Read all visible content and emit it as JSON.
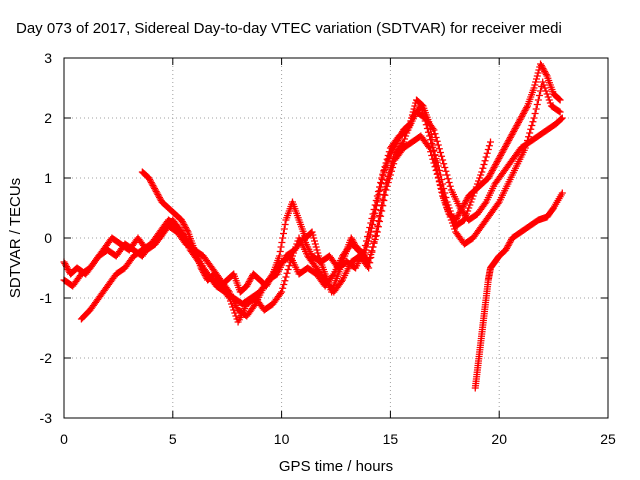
{
  "chart_data": {
    "type": "scatter",
    "title": "Day 073 of 2017, Sidereal Day-to-day VTEC variation (SDTVAR) for receiver medi",
    "xlabel": "GPS time / hours",
    "ylabel": "SDTVAR / TECUs",
    "xlim": [
      0,
      25
    ],
    "ylim": [
      -3,
      3
    ],
    "xticks": [
      0,
      5,
      10,
      15,
      20,
      25
    ],
    "yticks": [
      -3,
      -2,
      -1,
      0,
      1,
      2,
      3
    ],
    "grid": true,
    "marker": "+",
    "color": "#ff0000",
    "series": [
      {
        "x": [
          0.0,
          0.3,
          0.6,
          1.0,
          1.4,
          1.8,
          2.2,
          2.6,
          3.0,
          3.4,
          3.8,
          4.2,
          4.6,
          5.0,
          5.4,
          5.8,
          6.2,
          6.6,
          7.0,
          7.4,
          7.8,
          8.2,
          8.6,
          9.0,
          9.4,
          9.8,
          10.2,
          10.6,
          11.0,
          11.4,
          11.8,
          12.2,
          12.6,
          13.0,
          13.4,
          13.8,
          14.2,
          14.6,
          15.0,
          15.4,
          15.8,
          16.2,
          16.6,
          17.0,
          17.4,
          17.8,
          18.2,
          18.6,
          19.0,
          19.4,
          19.8,
          20.2,
          20.6,
          21.0,
          21.4,
          21.8,
          22.2,
          22.6,
          22.9
        ],
        "y": [
          -0.4,
          -0.6,
          -0.5,
          -0.6,
          -0.4,
          -0.2,
          0.0,
          -0.1,
          -0.2,
          0.0,
          -0.2,
          -0.1,
          0.1,
          0.3,
          0.1,
          -0.2,
          -0.4,
          -0.6,
          -0.8,
          -0.9,
          -1.0,
          -1.1,
          -1.0,
          -0.9,
          -0.7,
          -0.6,
          -0.3,
          -0.2,
          0.0,
          -0.3,
          -0.4,
          -0.3,
          -0.5,
          -0.4,
          -0.5,
          -0.2,
          0.4,
          1.0,
          1.5,
          1.7,
          1.8,
          2.1,
          2.0,
          1.8,
          1.3,
          0.8,
          0.5,
          0.3,
          0.4,
          0.6,
          0.9,
          1.1,
          1.3,
          1.5,
          1.6,
          1.7,
          1.8,
          1.9,
          2.0
        ]
      },
      {
        "x": [
          0.0,
          0.4,
          0.8,
          1.2,
          1.6,
          2.0,
          2.4,
          2.8,
          3.2,
          3.6,
          4.0,
          4.4,
          4.8,
          5.2,
          5.6,
          6.0,
          6.4,
          6.8,
          7.2,
          7.6,
          8.0,
          8.4,
          8.8,
          9.2,
          9.6,
          10.0,
          10.4,
          10.8,
          11.2,
          11.6,
          12.0,
          12.4,
          12.8,
          13.2,
          13.6,
          14.0,
          14.4,
          14.8,
          15.2,
          15.6,
          16.0,
          16.4,
          16.8,
          17.2,
          17.6,
          18.0,
          18.4,
          18.8,
          19.2,
          19.6,
          20.0,
          20.4,
          20.8,
          21.2,
          21.6,
          22.0,
          22.4,
          22.8
        ],
        "y": [
          -0.7,
          -0.8,
          -0.6,
          -0.5,
          -0.3,
          -0.2,
          -0.3,
          -0.1,
          -0.2,
          -0.3,
          -0.1,
          0.0,
          0.2,
          0.1,
          -0.1,
          -0.2,
          -0.3,
          -0.5,
          -0.7,
          -0.9,
          -1.2,
          -1.3,
          -1.1,
          -0.8,
          -0.6,
          -0.4,
          -0.3,
          -0.6,
          -0.5,
          -0.6,
          -0.8,
          -0.6,
          -0.3,
          -0.1,
          -0.2,
          -0.4,
          0.1,
          0.8,
          1.3,
          1.5,
          1.6,
          1.7,
          1.5,
          1.0,
          0.5,
          0.1,
          -0.1,
          0.0,
          0.2,
          0.4,
          0.6,
          0.9,
          1.2,
          1.5,
          2.0,
          2.6,
          2.2,
          2.1
        ]
      },
      {
        "x": [
          0.8,
          1.2,
          1.6,
          2.0,
          2.4,
          2.8,
          3.2,
          3.6,
          4.0,
          4.4,
          4.8,
          5.2,
          5.6,
          6.0,
          6.4,
          6.8,
          7.2,
          7.6,
          8.0,
          8.4,
          8.8,
          9.2,
          9.6,
          10.0,
          10.4,
          10.8,
          11.2,
          11.6,
          12.0,
          12.4,
          12.8,
          13.2,
          13.6,
          14.0,
          14.4,
          14.8,
          15.2,
          15.6,
          16.0,
          16.4,
          16.8,
          17.2,
          17.6,
          18.0,
          18.4,
          18.8,
          19.2,
          19.6
        ],
        "y": [
          -1.35,
          -1.2,
          -1.0,
          -0.8,
          -0.6,
          -0.5,
          -0.3,
          -0.2,
          -0.1,
          0.1,
          0.3,
          0.2,
          0.0,
          -0.2,
          -0.5,
          -0.7,
          -0.8,
          -1.0,
          -1.4,
          -1.1,
          -1.0,
          -1.2,
          -1.1,
          -0.9,
          -0.4,
          0.0,
          -0.3,
          -0.5,
          -0.7,
          -0.9,
          -0.7,
          -0.4,
          -0.3,
          -0.5,
          0.2,
          0.9,
          1.4,
          1.6,
          2.0,
          2.2,
          1.7,
          1.2,
          0.6,
          0.2,
          0.3,
          0.7,
          1.1,
          1.6
        ]
      },
      {
        "x": [
          3.6,
          3.9,
          4.2,
          4.5,
          4.8,
          5.1,
          5.4,
          5.7,
          6.0,
          6.3,
          6.6,
          6.9,
          7.2,
          7.5,
          7.8,
          8.1,
          8.4,
          8.7,
          9.0,
          9.3,
          9.6,
          9.9,
          10.2,
          10.5,
          10.8,
          11.1,
          11.4,
          11.7,
          12.0,
          12.3,
          12.6,
          12.9,
          13.2,
          13.5,
          13.8,
          14.1,
          14.4,
          14.7,
          15.0,
          15.3,
          15.6,
          15.9,
          16.2,
          16.5,
          16.8,
          17.1,
          17.4,
          17.7,
          18.0,
          18.3,
          18.6,
          18.9,
          19.2,
          19.5,
          19.8,
          20.1,
          20.4,
          20.7,
          21.0,
          21.3,
          21.6,
          21.9,
          22.2,
          22.5,
          22.8
        ],
        "y": [
          1.1,
          1.0,
          0.8,
          0.6,
          0.5,
          0.4,
          0.3,
          0.1,
          -0.2,
          -0.5,
          -0.7,
          -0.6,
          -0.8,
          -0.7,
          -0.6,
          -0.9,
          -0.8,
          -0.6,
          -0.7,
          -0.8,
          -0.6,
          -0.3,
          0.3,
          0.6,
          0.3,
          0.0,
          0.1,
          -0.3,
          -0.6,
          -0.9,
          -0.6,
          -0.3,
          0.0,
          -0.2,
          -0.3,
          0.1,
          0.6,
          1.1,
          1.4,
          1.6,
          1.8,
          1.9,
          2.3,
          2.2,
          1.9,
          1.2,
          0.7,
          0.4,
          0.3,
          0.5,
          0.7,
          0.8,
          0.9,
          1.0,
          1.2,
          1.4,
          1.6,
          1.8,
          2.0,
          2.2,
          2.5,
          2.9,
          2.7,
          2.4,
          2.3
        ]
      },
      {
        "x": [
          18.9,
          19.0,
          19.1,
          19.2,
          19.3,
          19.4,
          19.5,
          19.6,
          19.8,
          20.0,
          20.3,
          20.6,
          21.0,
          21.4,
          21.8,
          22.2,
          22.5,
          22.9
        ],
        "y": [
          -2.5,
          -2.2,
          -1.9,
          -1.6,
          -1.3,
          -1.0,
          -0.7,
          -0.5,
          -0.4,
          -0.3,
          -0.2,
          0.0,
          0.1,
          0.2,
          0.3,
          0.35,
          0.5,
          0.75
        ]
      }
    ]
  }
}
